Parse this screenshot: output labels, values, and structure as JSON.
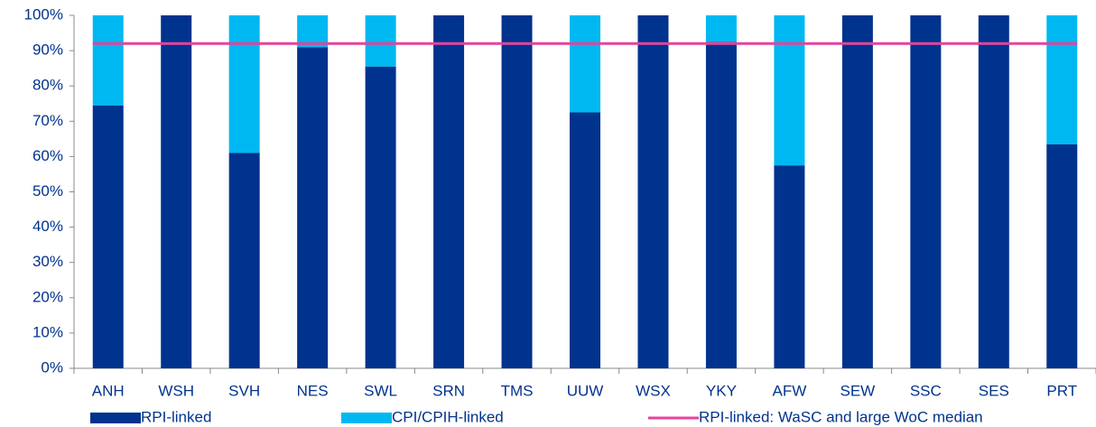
{
  "chart_data": {
    "type": "stacked_bar",
    "categories": [
      "ANH",
      "WSH",
      "SVH",
      "NES",
      "SWL",
      "SRN",
      "TMS",
      "UUW",
      "WSX",
      "YKY",
      "AFW",
      "SEW",
      "SSC",
      "SES",
      "PRT"
    ],
    "series": [
      {
        "name": "RPI-linked",
        "color": "#00338d",
        "values": [
          74.5,
          100,
          61,
          91,
          85.5,
          100,
          100,
          72.5,
          100,
          92.5,
          57.5,
          100,
          100,
          100,
          63.5
        ]
      },
      {
        "name": "CPI/CPIH-linked",
        "color": "#00b8f1",
        "values": [
          25.5,
          0,
          39,
          9,
          14.5,
          0,
          0,
          27.5,
          0,
          7.5,
          42.5,
          0,
          0,
          0,
          36.5
        ]
      }
    ],
    "median_line": {
      "name": "RPI-linked: WaSC and large WoC median",
      "color": "#e8419b",
      "value": 92
    },
    "ylim": [
      0,
      100
    ],
    "yticks": [
      {
        "value": 0,
        "label": "0%"
      },
      {
        "value": 10,
        "label": "10%"
      },
      {
        "value": 20,
        "label": "20%"
      },
      {
        "value": 30,
        "label": "30%"
      },
      {
        "value": 40,
        "label": "40%"
      },
      {
        "value": 50,
        "label": "50%"
      },
      {
        "value": 60,
        "label": "60%"
      },
      {
        "value": 70,
        "label": "70%"
      },
      {
        "value": 80,
        "label": "80%"
      },
      {
        "value": 90,
        "label": "90%"
      },
      {
        "value": 100,
        "label": "100%"
      }
    ],
    "grid": false
  }
}
